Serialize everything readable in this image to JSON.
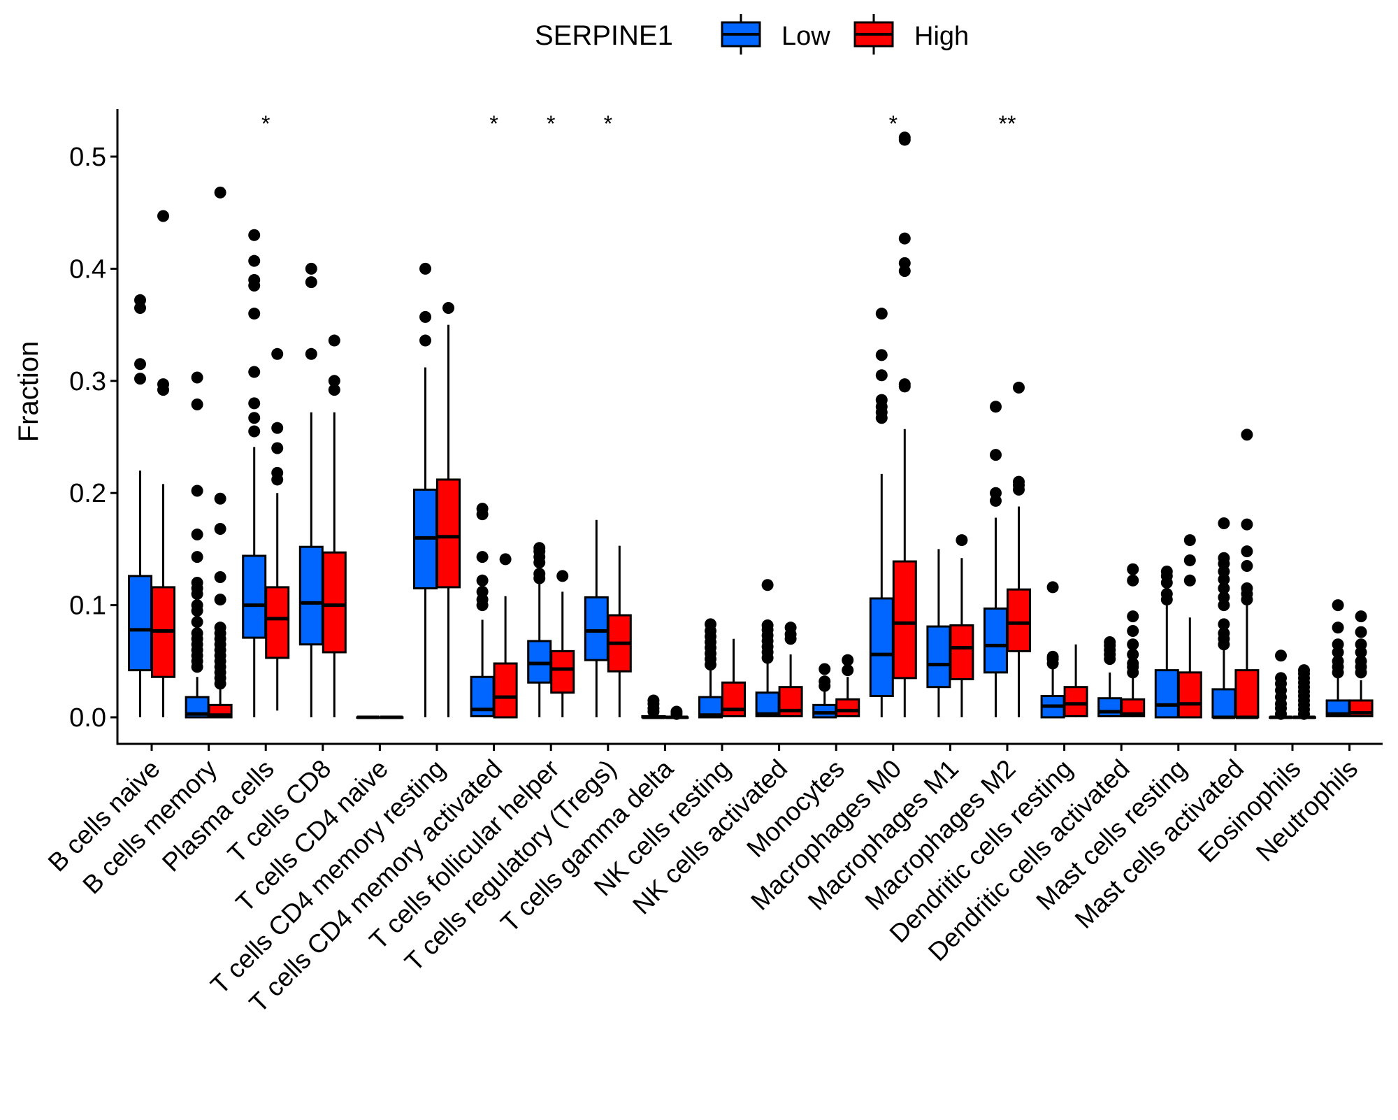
{
  "chart_data": {
    "type": "box",
    "title": "",
    "xlabel": "",
    "ylabel": "Fraction",
    "ylim": [
      0,
      0.54
    ],
    "yticks": [
      0.0,
      0.1,
      0.2,
      0.3,
      0.4,
      0.5
    ],
    "ytick_labels": [
      "0.0",
      "0.1",
      "0.2",
      "0.3",
      "0.4",
      "0.5"
    ],
    "grid": false,
    "legend": {
      "title": "SERPINE1",
      "placement": "top",
      "entries": [
        {
          "name": "Low",
          "color": "#0066FF"
        },
        {
          "name": "High",
          "color": "#FF0000"
        }
      ]
    },
    "categories": [
      "B cells naive",
      "B cells memory",
      "Plasma cells",
      "T cells CD8",
      "T cells CD4 naive",
      "T cells CD4 memory resting",
      "T cells CD4 memory activated",
      "T cells follicular helper",
      "T cells regulatory (Tregs)",
      "T cells gamma delta",
      "NK cells resting",
      "NK cells activated",
      "Monocytes",
      "Macrophages M0",
      "Macrophages M1",
      "Macrophages M2",
      "Dendritic cells resting",
      "Dendritic cells activated",
      "Mast cells resting",
      "Mast cells activated",
      "Eosinophils",
      "Neutrophils"
    ],
    "significance": [
      "",
      "",
      "*",
      "",
      "",
      "",
      "*",
      "*",
      "*",
      "",
      "",
      "",
      "",
      "*",
      "",
      "**",
      "",
      "",
      "",
      "",
      "",
      ""
    ],
    "series": [
      {
        "name": "Low",
        "color": "#0066FF",
        "boxes": [
          {
            "min": 0,
            "q1": 0.042,
            "median": 0.078,
            "q3": 0.126,
            "max": 0.22,
            "outliers": [
              0.302,
              0.315,
              0.365,
              0.372
            ]
          },
          {
            "min": 0,
            "q1": 0,
            "median": 0.003,
            "q3": 0.018,
            "max": 0.036,
            "outliers": [
              0.045,
              0.05,
              0.055,
              0.06,
              0.065,
              0.07,
              0.075,
              0.085,
              0.095,
              0.1,
              0.11,
              0.115,
              0.12,
              0.143,
              0.163,
              0.202,
              0.279,
              0.303
            ]
          },
          {
            "min": 0,
            "q1": 0.071,
            "median": 0.1,
            "q3": 0.144,
            "max": 0.241,
            "outliers": [
              0.255,
              0.267,
              0.28,
              0.308,
              0.36,
              0.385,
              0.39,
              0.407,
              0.43
            ]
          },
          {
            "min": 0,
            "q1": 0.065,
            "median": 0.102,
            "q3": 0.152,
            "max": 0.272,
            "outliers": [
              0.324,
              0.388,
              0.4
            ]
          },
          {
            "min": 0,
            "q1": 0,
            "median": 0,
            "q3": 0,
            "max": 0,
            "outliers": []
          },
          {
            "min": 0,
            "q1": 0.115,
            "median": 0.16,
            "q3": 0.203,
            "max": 0.312,
            "outliers": [
              0.336,
              0.357,
              0.4
            ]
          },
          {
            "min": 0,
            "q1": 0.001,
            "median": 0.007,
            "q3": 0.036,
            "max": 0.087,
            "outliers": [
              0.1,
              0.105,
              0.112,
              0.122,
              0.143,
              0.181,
              0.186
            ]
          },
          {
            "min": 0,
            "q1": 0.031,
            "median": 0.048,
            "q3": 0.068,
            "max": 0.12,
            "outliers": [
              0.124,
              0.128,
              0.138,
              0.143,
              0.148,
              0.151
            ]
          },
          {
            "min": 0,
            "q1": 0.051,
            "median": 0.077,
            "q3": 0.107,
            "max": 0.176,
            "outliers": []
          },
          {
            "min": 0,
            "q1": 0,
            "median": 0,
            "q3": 0.001,
            "max": 0.002,
            "outliers": [
              0.005,
              0.008,
              0.012,
              0.015
            ]
          },
          {
            "min": 0,
            "q1": 0,
            "median": 0.002,
            "q3": 0.018,
            "max": 0.044,
            "outliers": [
              0.047,
              0.052,
              0.057,
              0.062,
              0.067,
              0.072,
              0.077,
              0.083
            ]
          },
          {
            "min": 0,
            "q1": 0.001,
            "median": 0.003,
            "q3": 0.022,
            "max": 0.05,
            "outliers": [
              0.053,
              0.058,
              0.063,
              0.068,
              0.073,
              0.078,
              0.082,
              0.118
            ]
          },
          {
            "min": 0,
            "q1": 0,
            "median": 0.004,
            "q3": 0.011,
            "max": 0.025,
            "outliers": [
              0.028,
              0.032,
              0.043
            ]
          },
          {
            "min": 0,
            "q1": 0.019,
            "median": 0.056,
            "q3": 0.106,
            "max": 0.217,
            "outliers": [
              0.267,
              0.272,
              0.277,
              0.283,
              0.305,
              0.323,
              0.36
            ]
          },
          {
            "min": 0,
            "q1": 0.027,
            "median": 0.047,
            "q3": 0.081,
            "max": 0.15,
            "outliers": []
          },
          {
            "min": 0,
            "q1": 0.04,
            "median": 0.064,
            "q3": 0.097,
            "max": 0.178,
            "outliers": [
              0.193,
              0.2,
              0.234,
              0.277
            ]
          },
          {
            "min": 0,
            "q1": 0,
            "median": 0.01,
            "q3": 0.019,
            "max": 0.043,
            "outliers": [
              0.048,
              0.052,
              0.054,
              0.116
            ]
          },
          {
            "min": 0,
            "q1": 0.001,
            "median": 0.005,
            "q3": 0.017,
            "max": 0.04,
            "outliers": [
              0.052,
              0.056,
              0.06,
              0.064,
              0.067
            ]
          },
          {
            "min": 0,
            "q1": 0,
            "median": 0.011,
            "q3": 0.042,
            "max": 0.1,
            "outliers": [
              0.105,
              0.11,
              0.12,
              0.126,
              0.13
            ]
          },
          {
            "min": 0,
            "q1": 0,
            "median": 0,
            "q3": 0.025,
            "max": 0.06,
            "outliers": [
              0.065,
              0.07,
              0.075,
              0.083,
              0.1,
              0.107,
              0.115,
              0.123,
              0.13,
              0.137,
              0.142,
              0.173
            ]
          },
          {
            "min": 0,
            "q1": 0,
            "median": 0,
            "q3": 0,
            "max": 0,
            "outliers": [
              0.003,
              0.008,
              0.012,
              0.018,
              0.024,
              0.03,
              0.035,
              0.055
            ]
          },
          {
            "min": 0,
            "q1": 0.001,
            "median": 0.003,
            "q3": 0.015,
            "max": 0.035,
            "outliers": [
              0.04,
              0.045,
              0.05,
              0.058,
              0.065,
              0.08,
              0.1
            ]
          }
        ]
      },
      {
        "name": "High",
        "color": "#FF0000",
        "boxes": [
          {
            "min": 0,
            "q1": 0.036,
            "median": 0.077,
            "q3": 0.116,
            "max": 0.208,
            "outliers": [
              0.292,
              0.297,
              0.447
            ]
          },
          {
            "min": 0,
            "q1": 0,
            "median": 0.002,
            "q3": 0.011,
            "max": 0.027,
            "outliers": [
              0.03,
              0.035,
              0.04,
              0.045,
              0.05,
              0.055,
              0.06,
              0.065,
              0.07,
              0.075,
              0.08,
              0.105,
              0.125,
              0.168,
              0.195,
              0.468
            ]
          },
          {
            "min": 0.006,
            "q1": 0.053,
            "median": 0.088,
            "q3": 0.116,
            "max": 0.2,
            "outliers": [
              0.212,
              0.218,
              0.24,
              0.258,
              0.324
            ]
          },
          {
            "min": 0,
            "q1": 0.058,
            "median": 0.1,
            "q3": 0.147,
            "max": 0.272,
            "outliers": [
              0.292,
              0.3,
              0.336
            ]
          },
          {
            "min": 0,
            "q1": 0,
            "median": 0,
            "q3": 0,
            "max": 0,
            "outliers": []
          },
          {
            "min": 0,
            "q1": 0.116,
            "median": 0.161,
            "q3": 0.212,
            "max": 0.35,
            "outliers": [
              0.365
            ]
          },
          {
            "min": 0,
            "q1": 0,
            "median": 0.018,
            "q3": 0.048,
            "max": 0.108,
            "outliers": [
              0.141
            ]
          },
          {
            "min": 0,
            "q1": 0.022,
            "median": 0.043,
            "q3": 0.059,
            "max": 0.112,
            "outliers": [
              0.126
            ]
          },
          {
            "min": 0,
            "q1": 0.041,
            "median": 0.066,
            "q3": 0.091,
            "max": 0.153,
            "outliers": []
          },
          {
            "min": 0,
            "q1": 0,
            "median": 0,
            "q3": 0,
            "max": 0,
            "outliers": [
              0.003,
              0.005
            ]
          },
          {
            "min": 0,
            "q1": 0.001,
            "median": 0.007,
            "q3": 0.031,
            "max": 0.07,
            "outliers": []
          },
          {
            "min": 0,
            "q1": 0.001,
            "median": 0.006,
            "q3": 0.027,
            "max": 0.056,
            "outliers": [
              0.07,
              0.074,
              0.08
            ]
          },
          {
            "min": 0,
            "q1": 0.001,
            "median": 0.006,
            "q3": 0.016,
            "max": 0.036,
            "outliers": [
              0.042,
              0.051
            ]
          },
          {
            "min": 0,
            "q1": 0.035,
            "median": 0.084,
            "q3": 0.139,
            "max": 0.257,
            "outliers": [
              0.295,
              0.297,
              0.398,
              0.405,
              0.427,
              0.515,
              0.517
            ]
          },
          {
            "min": 0,
            "q1": 0.034,
            "median": 0.062,
            "q3": 0.082,
            "max": 0.142,
            "outliers": [
              0.158
            ]
          },
          {
            "min": 0,
            "q1": 0.059,
            "median": 0.084,
            "q3": 0.114,
            "max": 0.188,
            "outliers": [
              0.203,
              0.207,
              0.21,
              0.294
            ]
          },
          {
            "min": 0,
            "q1": 0.001,
            "median": 0.012,
            "q3": 0.027,
            "max": 0.065,
            "outliers": []
          },
          {
            "min": 0,
            "q1": 0.001,
            "median": 0.003,
            "q3": 0.016,
            "max": 0.035,
            "outliers": [
              0.04,
              0.045,
              0.048,
              0.056,
              0.065,
              0.077,
              0.09,
              0.122,
              0.132
            ]
          },
          {
            "min": 0,
            "q1": 0,
            "median": 0.012,
            "q3": 0.04,
            "max": 0.089,
            "outliers": [
              0.122,
              0.14,
              0.158
            ]
          },
          {
            "min": 0,
            "q1": 0,
            "median": 0,
            "q3": 0.042,
            "max": 0.1,
            "outliers": [
              0.105,
              0.11,
              0.115,
              0.135,
              0.148,
              0.172,
              0.252
            ]
          },
          {
            "min": 0,
            "q1": 0,
            "median": 0,
            "q3": 0,
            "max": 0,
            "outliers": [
              0.003,
              0.007,
              0.011,
              0.015,
              0.019,
              0.023,
              0.027,
              0.031,
              0.035,
              0.039,
              0.042
            ]
          },
          {
            "min": 0,
            "q1": 0.001,
            "median": 0.004,
            "q3": 0.015,
            "max": 0.033,
            "outliers": [
              0.04,
              0.045,
              0.05,
              0.058,
              0.065,
              0.076,
              0.09
            ]
          }
        ]
      }
    ]
  }
}
